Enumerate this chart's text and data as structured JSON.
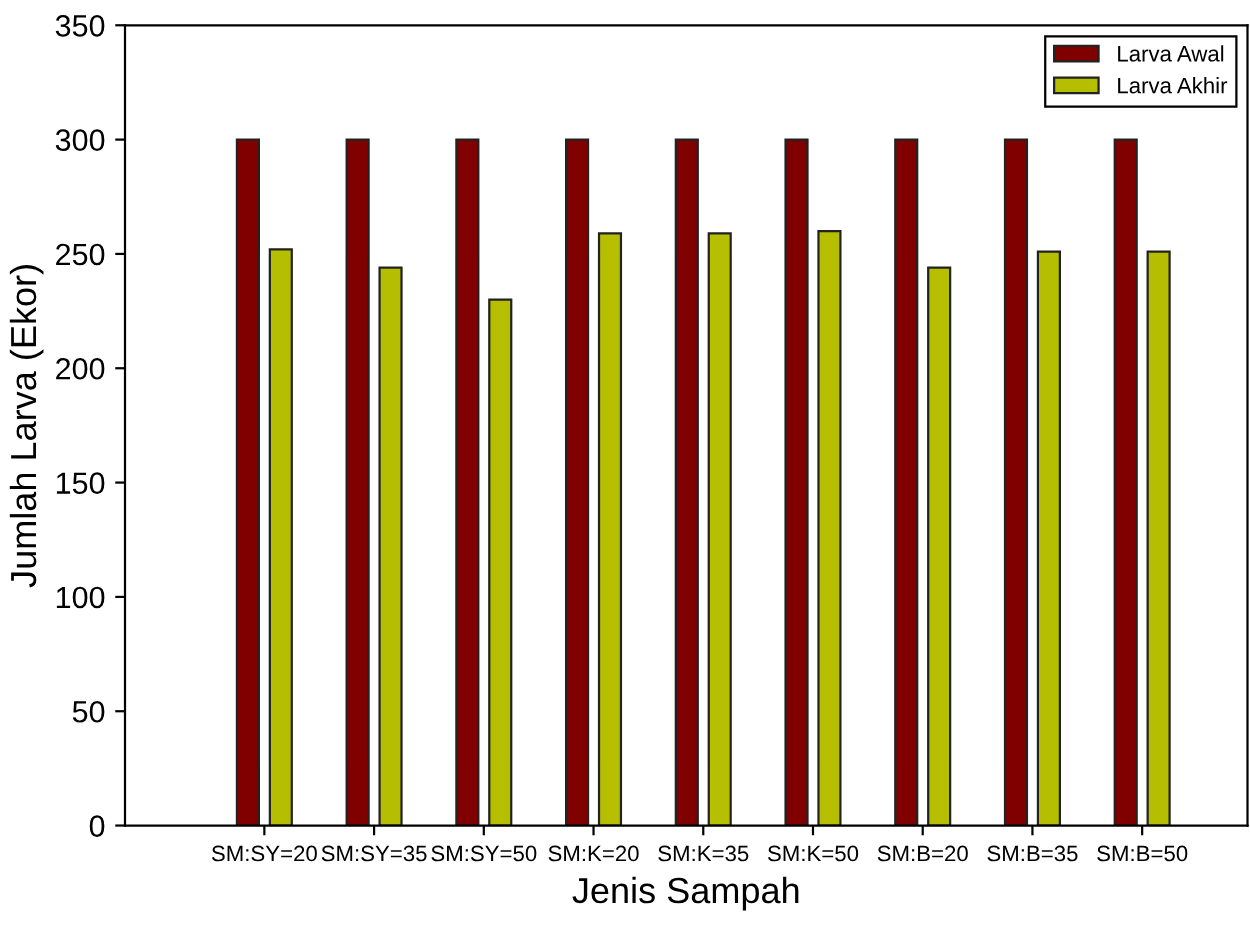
{
  "chart_data": {
    "type": "bar",
    "xlabel": "Jenis Sampah",
    "ylabel": "Jumlah Larva (Ekor)",
    "categories": [
      "SM:SY=20",
      "SM:SY=35",
      "SM:SY=50",
      "SM:K=20",
      "SM:K=35",
      "SM:K=50",
      "SM:B=20",
      "SM:B=35",
      "SM:B=50"
    ],
    "series": [
      {
        "name": "Larva Awal",
        "color": "#800000",
        "values": [
          300,
          300,
          300,
          300,
          300,
          300,
          300,
          300,
          300
        ]
      },
      {
        "name": "Larva Akhir",
        "color": "#b5bf00",
        "values": [
          252,
          244,
          230,
          259,
          259,
          260,
          244,
          251,
          251
        ]
      }
    ],
    "ylim": [
      0,
      350
    ],
    "yticks": [
      0,
      50,
      100,
      150,
      200,
      250,
      300,
      350
    ],
    "grid": false,
    "legend": "top right"
  }
}
